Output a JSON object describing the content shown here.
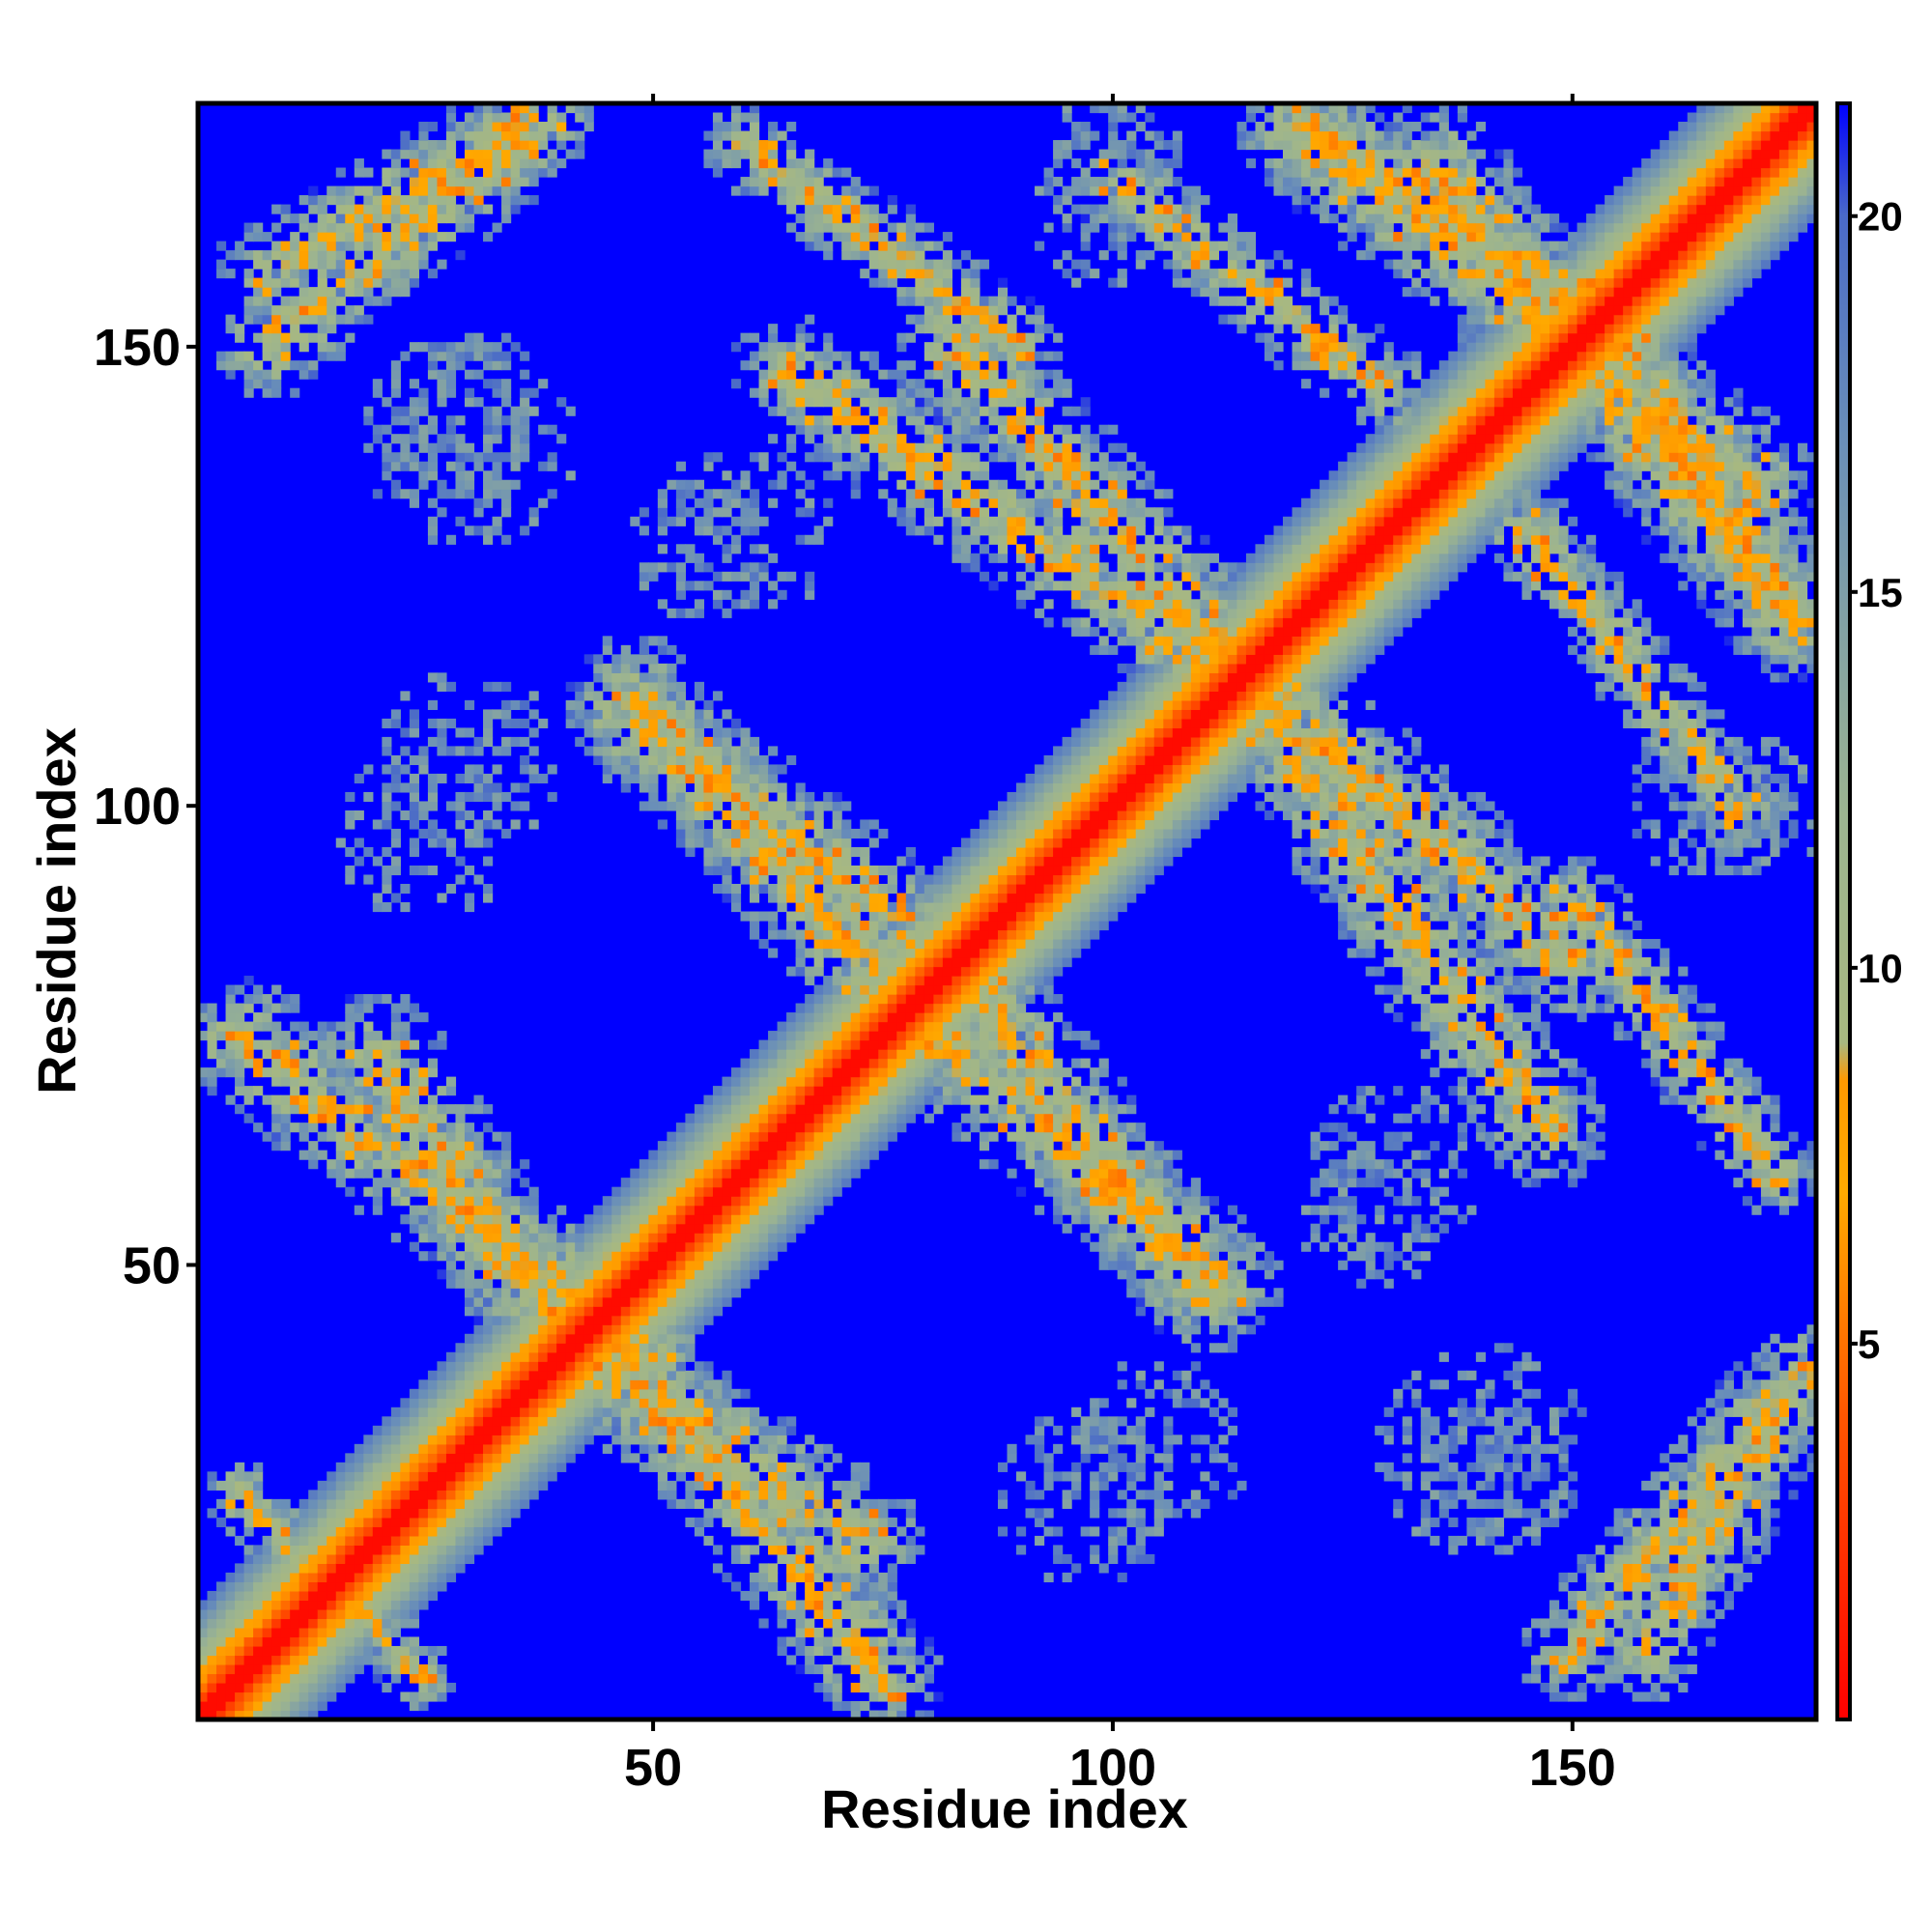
{
  "chart_data": {
    "type": "heatmap",
    "title": "",
    "xlabel": "Residue index",
    "ylabel": "Residue index",
    "n_residues": 176,
    "xlim": [
      1,
      176
    ],
    "ylim": [
      1,
      176
    ],
    "x_ticks": [
      "50",
      "100",
      "150"
    ],
    "y_ticks": [
      "50",
      "100",
      "150"
    ],
    "x_tick_values": [
      50,
      100,
      150
    ],
    "y_tick_values": [
      50,
      100,
      150
    ],
    "colorbar": {
      "range": [
        0,
        21.5
      ],
      "ticks": [
        "5",
        "10",
        "15",
        "20"
      ],
      "tick_values": [
        5,
        10,
        15,
        20
      ],
      "stops": [
        {
          "value": 0,
          "color": "#ff0000"
        },
        {
          "value": 4,
          "color": "#ff5500"
        },
        {
          "value": 7,
          "color": "#ffaa00"
        },
        {
          "value": 8.5,
          "color": "#ff9900"
        },
        {
          "value": 9,
          "color": "#a8b880"
        },
        {
          "value": 12,
          "color": "#9cb490"
        },
        {
          "value": 17,
          "color": "#6a8fb8"
        },
        {
          "value": 20,
          "color": "#4a6ac8"
        },
        {
          "value": 21.5,
          "color": "#0000ff"
        }
      ]
    },
    "background_color": "#0000ff",
    "contact_bands": [
      {
        "name": "diagonal",
        "a": [
          1,
          1
        ],
        "b": [
          176,
          176
        ],
        "w": 0
      },
      {
        "name": "anti-1",
        "a": [
          5,
          75
        ],
        "b": [
          49,
          40
        ],
        "w": 7
      },
      {
        "name": "anti-2",
        "a": [
          42,
          40
        ],
        "b": [
          73,
          20
        ],
        "w": 7
      },
      {
        "name": "anti-3",
        "a": [
          47,
          110
        ],
        "b": [
          80,
          85
        ],
        "w": 7
      },
      {
        "name": "anti-4",
        "a": [
          80,
          75
        ],
        "b": [
          112,
          48
        ],
        "w": 7
      },
      {
        "name": "anti-5",
        "a": [
          65,
          147
        ],
        "b": [
          117,
          112
        ],
        "w": 7
      },
      {
        "name": "anti-6",
        "a": [
          117,
          112
        ],
        "b": [
          150,
          83
        ],
        "w": 7
      },
      {
        "name": "anti-7",
        "a": [
          122,
          172
        ],
        "b": [
          170,
          135
        ],
        "w": 7
      },
      {
        "name": "anti-8",
        "a": [
          155,
          150
        ],
        "b": [
          174,
          120
        ],
        "w": 7
      },
      {
        "name": "anti-9",
        "a": [
          38,
          175
        ],
        "b": [
          8,
          158
        ],
        "w": 6
      },
      {
        "name": "anti-10",
        "a": [
          150,
          8
        ],
        "b": [
          172,
          35
        ],
        "w": 6
      },
      {
        "name": "cross-1",
        "a": [
          20,
          10
        ],
        "b": [
          5,
          25
        ],
        "w": 4
      },
      {
        "name": "cross-2",
        "a": [
          100,
          168
        ],
        "b": [
          130,
          145
        ],
        "w": 5
      },
      {
        "name": "cross-3",
        "a": [
          150,
          90
        ],
        "b": [
          172,
          60
        ],
        "w": 5
      }
    ],
    "sparse_patches": [
      {
        "center": [
          25,
          97
        ],
        "radius": 10
      },
      {
        "center": [
          105,
          30
        ],
        "radius": 10
      },
      {
        "center": [
          140,
          30
        ],
        "radius": 12
      },
      {
        "center": [
          55,
          128
        ],
        "radius": 8
      },
      {
        "center": [
          28,
          142
        ],
        "radius": 9
      },
      {
        "center": [
          130,
          60
        ],
        "radius": 10
      },
      {
        "center": [
          165,
          100
        ],
        "radius": 9
      },
      {
        "center": [
          100,
          170
        ],
        "radius": 8
      }
    ]
  }
}
